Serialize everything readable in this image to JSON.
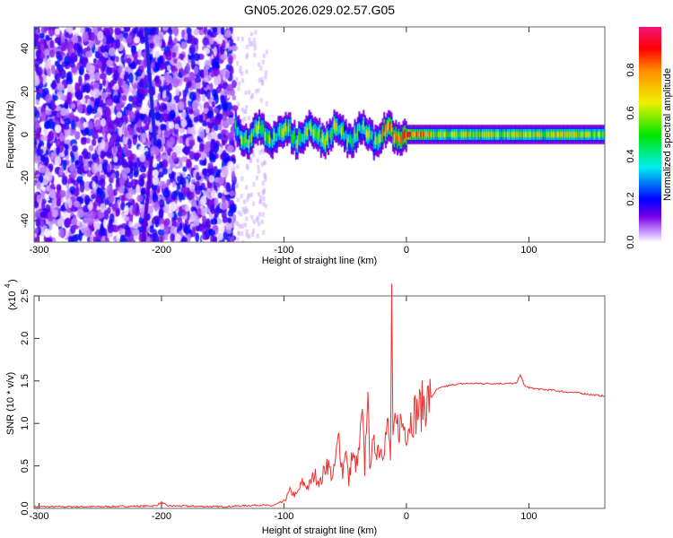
{
  "chart_data": [
    {
      "type": "heatmap",
      "title": "GN05.2026.029.02.57.G05",
      "xlabel": "Height of straight line (km)",
      "ylabel": "Frequency (Hz)",
      "xlim": [
        -304,
        162
      ],
      "ylim": [
        -50,
        50
      ],
      "xticks": [
        -300,
        -200,
        -100,
        0,
        100
      ],
      "yticks": [
        -40,
        -20,
        0,
        20,
        40
      ],
      "colorbar": {
        "label": "Normalized spectral amplitude",
        "range": [
          0,
          1
        ],
        "ticks": [
          "0.0",
          "0.2",
          "0.4",
          "0.6",
          "0.8"
        ]
      },
      "features": {
        "noise_region_km": [
          -304,
          -140
        ],
        "streak_km": [
          -213,
          -200
        ],
        "signal_track_km": [
          -140,
          162
        ],
        "signal_freq_hz": 0
      }
    },
    {
      "type": "line",
      "xlabel": "Height of straight line (km)",
      "ylabel": "SNR (10 * v/v)",
      "scale_label": "(x10",
      "scale_exp": "4",
      "xlim": [
        -304,
        162
      ],
      "ylim": [
        0,
        2.5
      ],
      "xticks": [
        -300,
        -200,
        -100,
        0,
        100
      ],
      "yticks": [
        "0.0",
        "0.5",
        "1.0",
        "1.5",
        "2.0",
        "2.5"
      ],
      "color": "#f03030",
      "x": [
        -304,
        -250,
        -205,
        -200,
        -195,
        -150,
        -120,
        -110,
        -100,
        -95,
        -90,
        -85,
        -80,
        -75,
        -70,
        -65,
        -60,
        -55,
        -52,
        -50,
        -47,
        -45,
        -40,
        -36,
        -34,
        -32,
        -30,
        -25,
        -20,
        -15,
        -13,
        -12,
        -11,
        -10,
        -5,
        0,
        5,
        10,
        15,
        20,
        25,
        30,
        40,
        50,
        60,
        70,
        80,
        90,
        93,
        96,
        100,
        110,
        120,
        130,
        140,
        150,
        162
      ],
      "y": [
        0.02,
        0.02,
        0.03,
        0.07,
        0.03,
        0.02,
        0.04,
        0.03,
        0.08,
        0.2,
        0.15,
        0.3,
        0.25,
        0.4,
        0.3,
        0.55,
        0.35,
        0.85,
        0.4,
        0.75,
        0.3,
        0.6,
        0.5,
        1.05,
        0.45,
        1.38,
        0.6,
        0.75,
        0.7,
        0.95,
        0.6,
        2.5,
        0.7,
        0.9,
        1.0,
        0.95,
        1.1,
        1.15,
        1.25,
        1.3,
        1.4,
        1.43,
        1.46,
        1.47,
        1.47,
        1.47,
        1.47,
        1.47,
        1.58,
        1.45,
        1.42,
        1.4,
        1.39,
        1.37,
        1.36,
        1.34,
        1.32
      ]
    }
  ]
}
